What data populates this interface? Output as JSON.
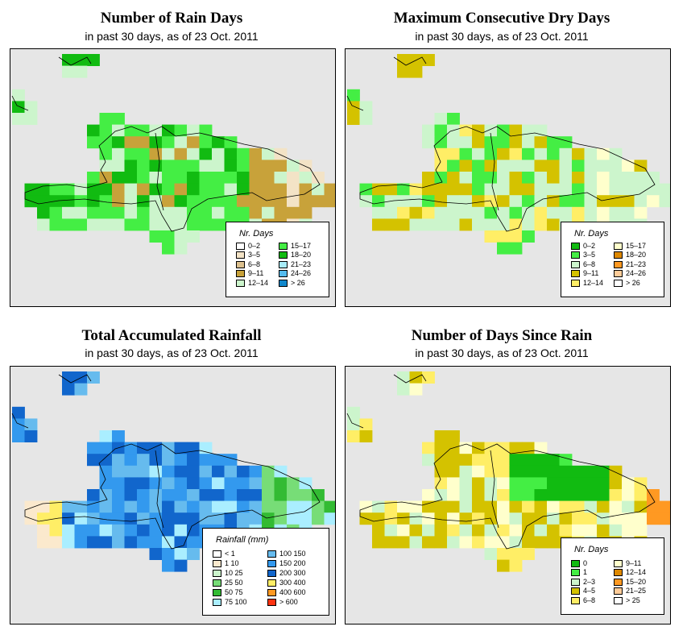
{
  "panels": [
    {
      "title": "Number of Rain Days",
      "subtitle": "in past 30 days, as of  23 Oct. 2011",
      "legend_title": "Nr. Days",
      "legend": [
        {
          "label": "0–2",
          "color": "#ffffff"
        },
        {
          "label": "3–5",
          "color": "#f3e3c6"
        },
        {
          "label": "6–8",
          "color": "#dcc08e"
        },
        {
          "label": "9–11",
          "color": "#c8a23a"
        },
        {
          "label": "12–14",
          "color": "#ccf5cc"
        },
        {
          "label": "15–17",
          "color": "#44ee44"
        },
        {
          "label": "18–20",
          "color": "#11bb11"
        },
        {
          "label": "21–23",
          "color": "#a8ecf8"
        },
        {
          "label": "24–26",
          "color": "#55bbee"
        },
        {
          "label": "> 26",
          "color": "#1188cc"
        }
      ]
    },
    {
      "title": "Maximum Consecutive Dry Days",
      "subtitle": "in past 30 days, as of  23 Oct. 2011",
      "legend_title": "Nr. Days",
      "legend": [
        {
          "label": "0–2",
          "color": "#11bb11"
        },
        {
          "label": "3–5",
          "color": "#44ee44"
        },
        {
          "label": "6–8",
          "color": "#ccf5cc"
        },
        {
          "label": "9–11",
          "color": "#d4c200"
        },
        {
          "label": "12–14",
          "color": "#ffee66"
        },
        {
          "label": "15–17",
          "color": "#ffffcc"
        },
        {
          "label": "18–20",
          "color": "#dd8800"
        },
        {
          "label": "21–23",
          "color": "#ff9922"
        },
        {
          "label": "24–26",
          "color": "#ffcc99"
        },
        {
          "label": "> 26",
          "color": "#ffffff"
        }
      ]
    },
    {
      "title": "Total Accumulated Rainfall",
      "subtitle": "in past 30 days, as of  23 Oct. 2011",
      "legend_title": "Rainfall (mm)",
      "legend": [
        {
          "label": "< 1",
          "color": "#ffffff"
        },
        {
          "label": "1    10",
          "color": "#fbe9cd"
        },
        {
          "label": "10    25",
          "color": "#ccf5cc"
        },
        {
          "label": "25    50",
          "color": "#77dd77"
        },
        {
          "label": "50    75",
          "color": "#33bb33"
        },
        {
          "label": "75   100",
          "color": "#aaeeff"
        },
        {
          "label": "100   150",
          "color": "#66bbee"
        },
        {
          "label": "150   200",
          "color": "#3399ee"
        },
        {
          "label": "200   300",
          "color": "#1166cc"
        },
        {
          "label": "300   400",
          "color": "#ffee66"
        },
        {
          "label": "400   600",
          "color": "#ff9922"
        },
        {
          "label": "> 600",
          "color": "#ff3311"
        }
      ]
    },
    {
      "title": "Number of Days Since Rain",
      "subtitle": "in past 30 days, as of  23 Oct. 2011",
      "legend_title": "Nr. Days",
      "legend": [
        {
          "label": "0",
          "color": "#11bb11"
        },
        {
          "label": "1",
          "color": "#44ee44"
        },
        {
          "label": "2–3",
          "color": "#ccf5cc"
        },
        {
          "label": "4–5",
          "color": "#d4c200"
        },
        {
          "label": "6–8",
          "color": "#ffee66"
        },
        {
          "label": "9–11",
          "color": "#ffffcc"
        },
        {
          "label": "12–14",
          "color": "#dd8800"
        },
        {
          "label": "15–20",
          "color": "#ff9922"
        },
        {
          "label": "21–25",
          "color": "#ffcc99"
        },
        {
          "label": "> 25",
          "color": "#ffffff"
        }
      ]
    }
  ]
}
